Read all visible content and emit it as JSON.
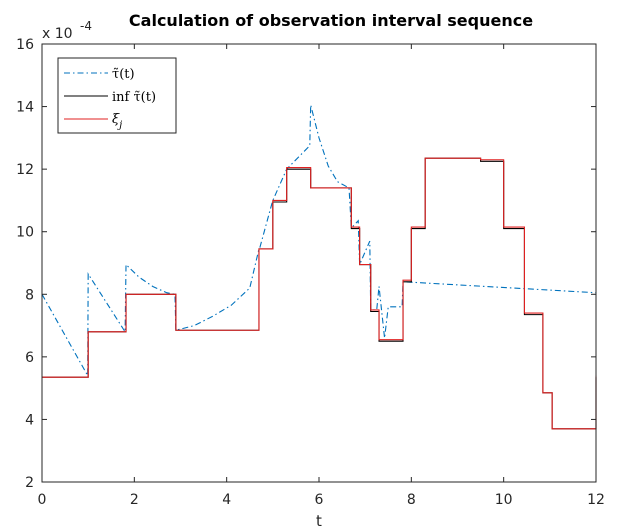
{
  "chart_data": {
    "type": "line",
    "title": "Calculation of observation interval sequence",
    "xlabel": "t",
    "ylabel": "",
    "scale_label_base": "x 10",
    "scale_label_exp": "-4",
    "xlim": [
      0,
      12
    ],
    "ylim": [
      2,
      16
    ],
    "xticks": [
      "0",
      "2",
      "4",
      "6",
      "8",
      "10",
      "12"
    ],
    "yticks": [
      "2",
      "4",
      "6",
      "8",
      "10",
      "12",
      "14",
      "16"
    ],
    "grid": false,
    "legend_position": "top-left",
    "legend": {
      "tau_label": "τ̃(t)",
      "inf_label": "inf τ̃(t)",
      "xi_label": "ξ_j",
      "xi_main": "ξ",
      "xi_sub": "j"
    },
    "colors": {
      "tau": "#0072BD",
      "inf": "#000000",
      "xi": "#E02020"
    },
    "series": [
      {
        "name": "τ̃(t)",
        "style": "dash-dot",
        "x": [
          0,
          0.99,
          1.0,
          1.8,
          1.82,
          2.1,
          2.4,
          2.7,
          2.88,
          2.9,
          3.3,
          3.7,
          4.1,
          4.5,
          4.7,
          4.72,
          4.98,
          5.0,
          5.3,
          5.8,
          5.82,
          6.0,
          6.2,
          6.4,
          6.65,
          6.7,
          6.72,
          6.85,
          6.88,
          7.1,
          7.12,
          7.25,
          7.3,
          7.42,
          7.5,
          7.8,
          7.82,
          12.0
        ],
        "y": [
          8.0,
          5.4,
          8.65,
          6.8,
          8.95,
          8.55,
          8.25,
          8.05,
          8.0,
          6.85,
          7.0,
          7.3,
          7.65,
          8.2,
          9.45,
          9.5,
          10.9,
          11.0,
          12.0,
          12.75,
          14.05,
          13.0,
          12.1,
          11.6,
          11.4,
          10.15,
          10.15,
          10.35,
          8.95,
          9.7,
          7.5,
          7.5,
          8.25,
          6.6,
          7.6,
          7.6,
          8.4,
          8.05
        ]
      },
      {
        "name": "inf τ̃(t)",
        "style": "solid",
        "x": [
          0,
          1.0,
          1.0,
          1.82,
          1.82,
          2.9,
          2.9,
          4.7,
          4.7,
          5.0,
          5.0,
          5.3,
          5.3,
          5.82,
          5.82,
          6.7,
          6.7,
          6.88,
          6.88,
          7.12,
          7.12,
          7.3,
          7.3,
          7.82,
          7.82,
          8.0,
          8.0,
          8.3,
          8.3,
          9.5,
          9.5,
          10.0,
          10.0,
          10.45,
          10.45,
          10.85,
          10.85,
          11.05,
          11.05,
          12.0,
          12.0
        ],
        "y": [
          5.35,
          5.35,
          6.8,
          6.8,
          8.0,
          8.0,
          6.85,
          6.85,
          9.45,
          9.45,
          10.95,
          10.95,
          12.0,
          12.0,
          11.4,
          11.4,
          10.1,
          10.1,
          8.95,
          8.95,
          7.45,
          7.45,
          6.5,
          6.5,
          8.4,
          8.4,
          10.1,
          10.1,
          12.35,
          12.35,
          12.25,
          12.25,
          10.1,
          10.1,
          7.35,
          7.35,
          4.85,
          4.85,
          3.7,
          3.7,
          5.35
        ]
      },
      {
        "name": "ξ_j",
        "style": "solid",
        "x": [
          0,
          1.0,
          1.0,
          1.82,
          1.82,
          2.9,
          2.9,
          4.7,
          4.7,
          5.0,
          5.0,
          5.3,
          5.3,
          5.82,
          5.82,
          6.7,
          6.7,
          6.88,
          6.88,
          7.12,
          7.12,
          7.3,
          7.3,
          7.82,
          7.82,
          8.0,
          8.0,
          8.3,
          8.3,
          9.5,
          9.5,
          10.0,
          10.0,
          10.45,
          10.45,
          10.85,
          10.85,
          11.05,
          11.05,
          12.0,
          12.0
        ],
        "y": [
          5.35,
          5.35,
          6.8,
          6.8,
          8.0,
          8.0,
          6.85,
          6.85,
          9.45,
          9.45,
          11.0,
          11.0,
          12.05,
          12.05,
          11.4,
          11.4,
          10.15,
          10.15,
          8.95,
          8.95,
          7.5,
          7.5,
          6.55,
          6.55,
          8.45,
          8.45,
          10.15,
          10.15,
          12.35,
          12.35,
          12.3,
          12.3,
          10.15,
          10.15,
          7.4,
          7.4,
          4.85,
          4.85,
          3.7,
          3.7,
          5.4
        ]
      }
    ]
  }
}
